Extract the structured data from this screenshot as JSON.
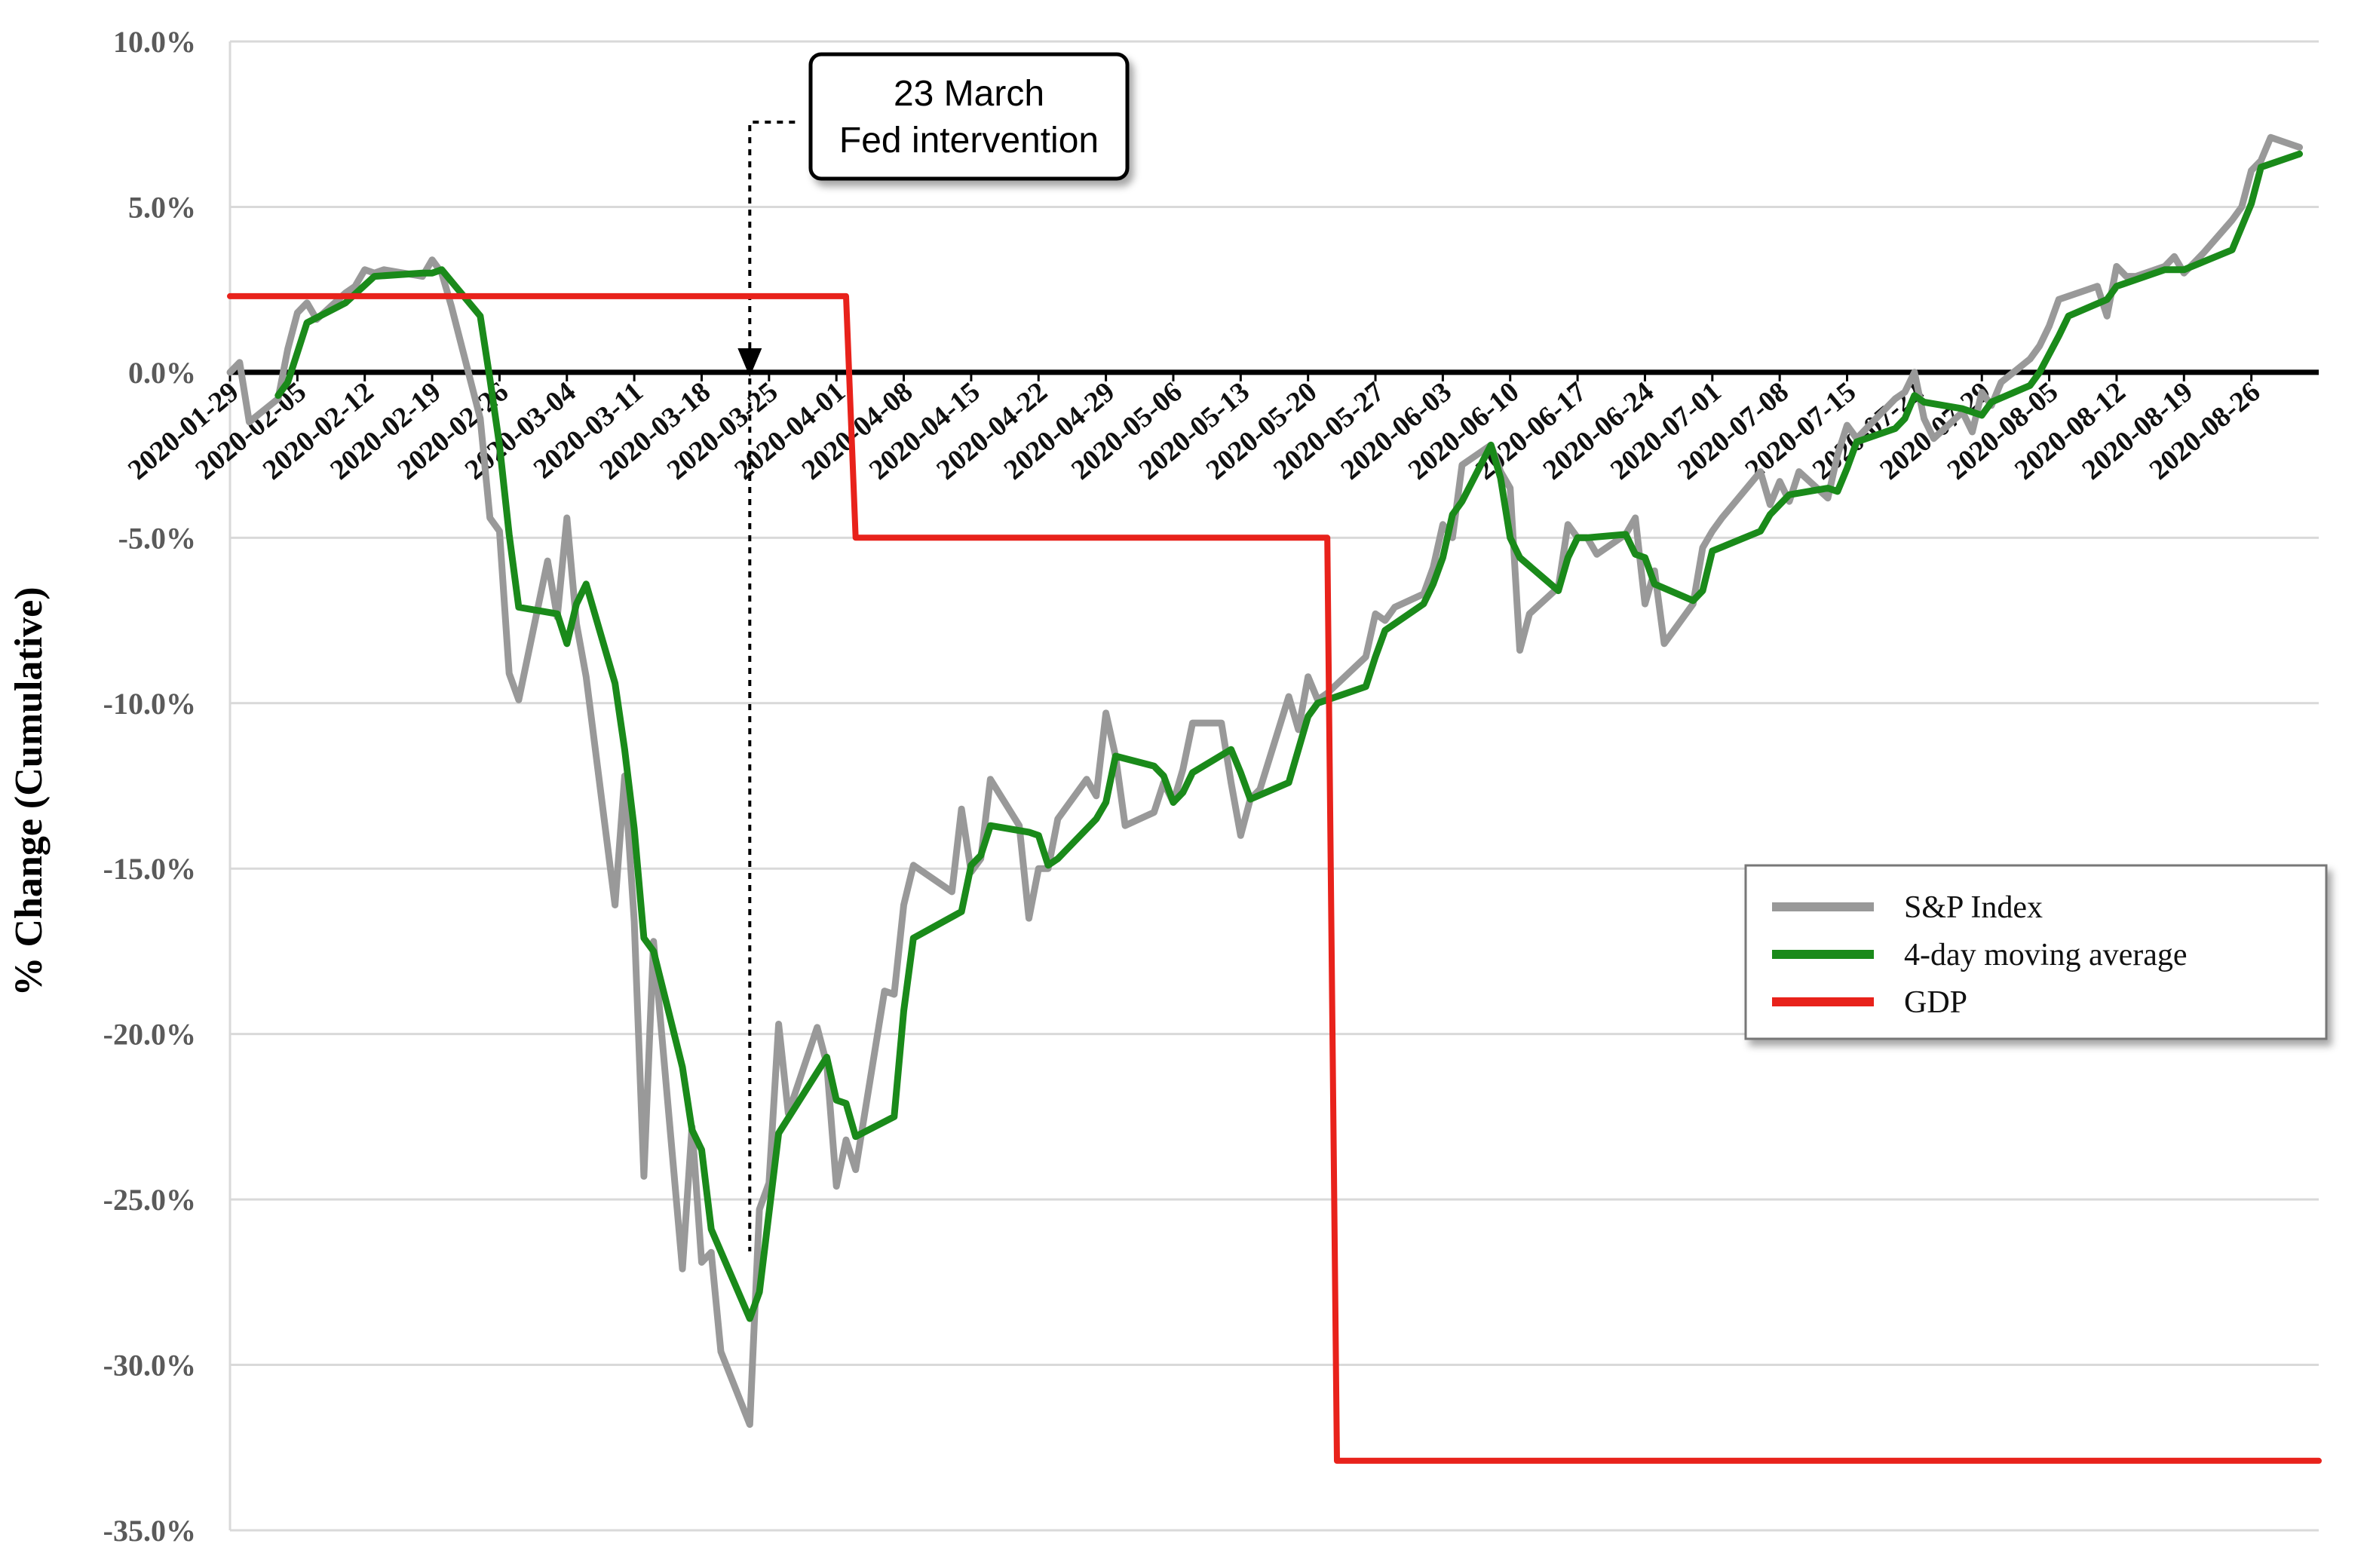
{
  "chart_data": {
    "type": "line",
    "title": "",
    "xlabel": "",
    "ylabel": "% Change (Cumulative)",
    "ylim": [
      -35,
      10
    ],
    "y_ticks": [
      10,
      5,
      0,
      -5,
      -10,
      -15,
      -20,
      -25,
      -30,
      -35
    ],
    "y_tick_labels": [
      "10.0%",
      "5.0%",
      "0.0%",
      "-5.0%",
      "-10.0%",
      "-15.0%",
      "-20.0%",
      "-25.0%",
      "-30.0%",
      "-35.0%"
    ],
    "x_range": [
      "2020-01-29",
      "2020-09-02"
    ],
    "x_tick_labels": [
      "2020-01-29",
      "2020-02-05",
      "2020-02-12",
      "2020-02-19",
      "2020-02-26",
      "2020-03-04",
      "2020-03-11",
      "2020-03-18",
      "2020-03-25",
      "2020-04-01",
      "2020-04-08",
      "2020-04-15",
      "2020-04-22",
      "2020-04-29",
      "2020-05-06",
      "2020-05-13",
      "2020-05-20",
      "2020-05-27",
      "2020-06-03",
      "2020-06-10",
      "2020-06-17",
      "2020-06-24",
      "2020-07-01",
      "2020-07-08",
      "2020-07-15",
      "2020-07-22",
      "2020-07-29",
      "2020-08-05",
      "2020-08-12",
      "2020-08-19",
      "2020-08-26"
    ],
    "grid": true,
    "legend_position": "right",
    "series": [
      {
        "name": "S&P Index",
        "color": "#999999",
        "points": [
          [
            "2020-01-29",
            0.0
          ],
          [
            "2020-01-30",
            0.3
          ],
          [
            "2020-01-31",
            -1.5
          ],
          [
            "2020-02-03",
            -0.8
          ],
          [
            "2020-02-04",
            0.7
          ],
          [
            "2020-02-05",
            1.8
          ],
          [
            "2020-02-06",
            2.1
          ],
          [
            "2020-02-07",
            1.6
          ],
          [
            "2020-02-10",
            2.4
          ],
          [
            "2020-02-11",
            2.6
          ],
          [
            "2020-02-12",
            3.1
          ],
          [
            "2020-02-13",
            3.0
          ],
          [
            "2020-02-14",
            3.1
          ],
          [
            "2020-02-18",
            2.9
          ],
          [
            "2020-02-19",
            3.4
          ],
          [
            "2020-02-20",
            3.0
          ],
          [
            "2020-02-21",
            2.0
          ],
          [
            "2020-02-24",
            -1.4
          ],
          [
            "2020-02-25",
            -4.4
          ],
          [
            "2020-02-26",
            -4.8
          ],
          [
            "2020-02-27",
            -9.1
          ],
          [
            "2020-02-28",
            -9.9
          ],
          [
            "2020-03-02",
            -5.7
          ],
          [
            "2020-03-03",
            -7.4
          ],
          [
            "2020-03-04",
            -4.4
          ],
          [
            "2020-03-05",
            -7.6
          ],
          [
            "2020-03-06",
            -9.2
          ],
          [
            "2020-03-09",
            -16.1
          ],
          [
            "2020-03-10",
            -12.2
          ],
          [
            "2020-03-11",
            -16.6
          ],
          [
            "2020-03-12",
            -24.3
          ],
          [
            "2020-03-13",
            -17.2
          ],
          [
            "2020-03-16",
            -27.1
          ],
          [
            "2020-03-17",
            -22.8
          ],
          [
            "2020-03-18",
            -26.9
          ],
          [
            "2020-03-19",
            -26.6
          ],
          [
            "2020-03-20",
            -29.6
          ],
          [
            "2020-03-23",
            -31.8
          ],
          [
            "2020-03-24",
            -25.3
          ],
          [
            "2020-03-25",
            -24.5
          ],
          [
            "2020-03-26",
            -19.7
          ],
          [
            "2020-03-27",
            -22.4
          ],
          [
            "2020-03-30",
            -19.8
          ],
          [
            "2020-03-31",
            -20.9
          ],
          [
            "2020-04-01",
            -24.6
          ],
          [
            "2020-04-02",
            -23.2
          ],
          [
            "2020-04-03",
            -24.1
          ],
          [
            "2020-04-06",
            -18.7
          ],
          [
            "2020-04-07",
            -18.8
          ],
          [
            "2020-04-08",
            -16.1
          ],
          [
            "2020-04-09",
            -14.9
          ],
          [
            "2020-04-13",
            -15.7
          ],
          [
            "2020-04-14",
            -13.2
          ],
          [
            "2020-04-15",
            -15.1
          ],
          [
            "2020-04-16",
            -14.7
          ],
          [
            "2020-04-17",
            -12.3
          ],
          [
            "2020-04-20",
            -13.7
          ],
          [
            "2020-04-21",
            -16.5
          ],
          [
            "2020-04-22",
            -15.0
          ],
          [
            "2020-04-23",
            -15.0
          ],
          [
            "2020-04-24",
            -13.5
          ],
          [
            "2020-04-27",
            -12.3
          ],
          [
            "2020-04-28",
            -12.8
          ],
          [
            "2020-04-29",
            -10.3
          ],
          [
            "2020-04-30",
            -11.6
          ],
          [
            "2020-05-01",
            -13.7
          ],
          [
            "2020-05-04",
            -13.3
          ],
          [
            "2020-05-05",
            -12.4
          ],
          [
            "2020-05-06",
            -13.0
          ],
          [
            "2020-05-07",
            -12.0
          ],
          [
            "2020-05-08",
            -10.6
          ],
          [
            "2020-05-11",
            -10.6
          ],
          [
            "2020-05-12",
            -12.4
          ],
          [
            "2020-05-13",
            -14.0
          ],
          [
            "2020-05-14",
            -12.9
          ],
          [
            "2020-05-15",
            -12.6
          ],
          [
            "2020-05-18",
            -9.8
          ],
          [
            "2020-05-19",
            -10.8
          ],
          [
            "2020-05-20",
            -9.2
          ],
          [
            "2020-05-21",
            -9.9
          ],
          [
            "2020-05-22",
            -9.7
          ],
          [
            "2020-05-26",
            -8.6
          ],
          [
            "2020-05-27",
            -7.3
          ],
          [
            "2020-05-28",
            -7.5
          ],
          [
            "2020-05-29",
            -7.1
          ],
          [
            "2020-06-01",
            -6.7
          ],
          [
            "2020-06-02",
            -5.9
          ],
          [
            "2020-06-03",
            -4.6
          ],
          [
            "2020-06-04",
            -5.0
          ],
          [
            "2020-06-05",
            -2.8
          ],
          [
            "2020-06-08",
            -2.2
          ],
          [
            "2020-06-09",
            -3.0
          ],
          [
            "2020-06-10",
            -3.5
          ],
          [
            "2020-06-11",
            -8.4
          ],
          [
            "2020-06-12",
            -7.3
          ],
          [
            "2020-06-15",
            -6.5
          ],
          [
            "2020-06-16",
            -4.6
          ],
          [
            "2020-06-17",
            -5.0
          ],
          [
            "2020-06-18",
            -5.0
          ],
          [
            "2020-06-19",
            -5.5
          ],
          [
            "2020-06-22",
            -4.9
          ],
          [
            "2020-06-23",
            -4.4
          ],
          [
            "2020-06-24",
            -7.0
          ],
          [
            "2020-06-25",
            -6.0
          ],
          [
            "2020-06-26",
            -8.2
          ],
          [
            "2020-06-29",
            -7.0
          ],
          [
            "2020-06-30",
            -5.3
          ],
          [
            "2020-07-01",
            -4.8
          ],
          [
            "2020-07-02",
            -4.4
          ],
          [
            "2020-07-06",
            -3.0
          ],
          [
            "2020-07-07",
            -4.0
          ],
          [
            "2020-07-08",
            -3.3
          ],
          [
            "2020-07-09",
            -3.9
          ],
          [
            "2020-07-10",
            -3.0
          ],
          [
            "2020-07-13",
            -3.8
          ],
          [
            "2020-07-14",
            -2.5
          ],
          [
            "2020-07-15",
            -1.6
          ],
          [
            "2020-07-16",
            -2.0
          ],
          [
            "2020-07-17",
            -1.7
          ],
          [
            "2020-07-20",
            -0.8
          ],
          [
            "2020-07-21",
            -0.6
          ],
          [
            "2020-07-22",
            0.0
          ],
          [
            "2020-07-23",
            -1.4
          ],
          [
            "2020-07-24",
            -2.0
          ],
          [
            "2020-07-27",
            -1.2
          ],
          [
            "2020-07-28",
            -1.8
          ],
          [
            "2020-07-29",
            -0.6
          ],
          [
            "2020-07-30",
            -1.0
          ],
          [
            "2020-07-31",
            -0.3
          ],
          [
            "2020-08-03",
            0.4
          ],
          [
            "2020-08-04",
            0.8
          ],
          [
            "2020-08-05",
            1.4
          ],
          [
            "2020-08-06",
            2.2
          ],
          [
            "2020-08-07",
            2.3
          ],
          [
            "2020-08-10",
            2.6
          ],
          [
            "2020-08-11",
            1.7
          ],
          [
            "2020-08-12",
            3.2
          ],
          [
            "2020-08-13",
            2.9
          ],
          [
            "2020-08-14",
            2.9
          ],
          [
            "2020-08-17",
            3.2
          ],
          [
            "2020-08-18",
            3.5
          ],
          [
            "2020-08-19",
            3.0
          ],
          [
            "2020-08-20",
            3.3
          ],
          [
            "2020-08-21",
            3.6
          ],
          [
            "2020-08-24",
            4.6
          ],
          [
            "2020-08-25",
            5.0
          ],
          [
            "2020-08-26",
            6.1
          ],
          [
            "2020-08-27",
            6.4
          ],
          [
            "2020-08-28",
            7.1
          ],
          [
            "2020-08-31",
            6.8
          ]
        ]
      },
      {
        "name": "4-day moving average",
        "color": "#1a8a1a",
        "points": [
          [
            "2020-02-03",
            -0.7
          ],
          [
            "2020-02-04",
            -0.3
          ],
          [
            "2020-02-05",
            0.6
          ],
          [
            "2020-02-06",
            1.5
          ],
          [
            "2020-02-10",
            2.1
          ],
          [
            "2020-02-13",
            2.9
          ],
          [
            "2020-02-18",
            3.0
          ],
          [
            "2020-02-19",
            3.0
          ],
          [
            "2020-02-20",
            3.1
          ],
          [
            "2020-02-24",
            1.7
          ],
          [
            "2020-02-25",
            -0.2
          ],
          [
            "2020-02-26",
            -2.2
          ],
          [
            "2020-02-27",
            -4.9
          ],
          [
            "2020-02-28",
            -7.1
          ],
          [
            "2020-03-03",
            -7.3
          ],
          [
            "2020-03-04",
            -8.2
          ],
          [
            "2020-03-05",
            -7.0
          ],
          [
            "2020-03-06",
            -6.4
          ],
          [
            "2020-03-09",
            -9.4
          ],
          [
            "2020-03-10",
            -11.4
          ],
          [
            "2020-03-11",
            -13.8
          ],
          [
            "2020-03-12",
            -17.1
          ],
          [
            "2020-03-13",
            -17.5
          ],
          [
            "2020-03-16",
            -21.0
          ],
          [
            "2020-03-17",
            -22.9
          ],
          [
            "2020-03-18",
            -23.5
          ],
          [
            "2020-03-19",
            -25.9
          ],
          [
            "2020-03-23",
            -28.6
          ],
          [
            "2020-03-24",
            -27.8
          ],
          [
            "2020-03-26",
            -23.0
          ],
          [
            "2020-03-31",
            -20.7
          ],
          [
            "2020-04-01",
            -22.0
          ],
          [
            "2020-04-02",
            -22.1
          ],
          [
            "2020-04-03",
            -23.1
          ],
          [
            "2020-04-07",
            -22.5
          ],
          [
            "2020-04-08",
            -19.3
          ],
          [
            "2020-04-09",
            -17.1
          ],
          [
            "2020-04-14",
            -16.3
          ],
          [
            "2020-04-15",
            -14.9
          ],
          [
            "2020-04-16",
            -14.6
          ],
          [
            "2020-04-17",
            -13.7
          ],
          [
            "2020-04-21",
            -13.9
          ],
          [
            "2020-04-22",
            -14.0
          ],
          [
            "2020-04-23",
            -14.9
          ],
          [
            "2020-04-24",
            -14.7
          ],
          [
            "2020-04-28",
            -13.5
          ],
          [
            "2020-04-29",
            -13.0
          ],
          [
            "2020-04-30",
            -11.6
          ],
          [
            "2020-05-04",
            -11.9
          ],
          [
            "2020-05-05",
            -12.2
          ],
          [
            "2020-05-06",
            -13.0
          ],
          [
            "2020-05-07",
            -12.7
          ],
          [
            "2020-05-08",
            -12.1
          ],
          [
            "2020-05-12",
            -11.4
          ],
          [
            "2020-05-13",
            -12.1
          ],
          [
            "2020-05-14",
            -12.9
          ],
          [
            "2020-05-18",
            -12.4
          ],
          [
            "2020-05-20",
            -10.4
          ],
          [
            "2020-05-21",
            -10.0
          ],
          [
            "2020-05-26",
            -9.5
          ],
          [
            "2020-05-27",
            -8.6
          ],
          [
            "2020-05-28",
            -7.8
          ],
          [
            "2020-06-01",
            -7.0
          ],
          [
            "2020-06-02",
            -6.4
          ],
          [
            "2020-06-03",
            -5.6
          ],
          [
            "2020-06-04",
            -4.3
          ],
          [
            "2020-06-05",
            -3.9
          ],
          [
            "2020-06-08",
            -2.2
          ],
          [
            "2020-06-09",
            -3.2
          ],
          [
            "2020-06-10",
            -5.0
          ],
          [
            "2020-06-11",
            -5.6
          ],
          [
            "2020-06-15",
            -6.6
          ],
          [
            "2020-06-16",
            -5.6
          ],
          [
            "2020-06-17",
            -5.0
          ],
          [
            "2020-06-18",
            -5.0
          ],
          [
            "2020-06-22",
            -4.9
          ],
          [
            "2020-06-23",
            -5.5
          ],
          [
            "2020-06-24",
            -5.6
          ],
          [
            "2020-06-25",
            -6.4
          ],
          [
            "2020-06-29",
            -6.9
          ],
          [
            "2020-06-30",
            -6.6
          ],
          [
            "2020-07-01",
            -5.4
          ],
          [
            "2020-07-06",
            -4.8
          ],
          [
            "2020-07-07",
            -4.3
          ],
          [
            "2020-07-09",
            -3.7
          ],
          [
            "2020-07-13",
            -3.5
          ],
          [
            "2020-07-14",
            -3.6
          ],
          [
            "2020-07-15",
            -2.9
          ],
          [
            "2020-07-16",
            -2.1
          ],
          [
            "2020-07-20",
            -1.7
          ],
          [
            "2020-07-21",
            -1.4
          ],
          [
            "2020-07-22",
            -0.7
          ],
          [
            "2020-07-23",
            -0.9
          ],
          [
            "2020-07-27",
            -1.1
          ],
          [
            "2020-07-29",
            -1.3
          ],
          [
            "2020-07-30",
            -0.9
          ],
          [
            "2020-08-03",
            -0.4
          ],
          [
            "2020-08-04",
            0.0
          ],
          [
            "2020-08-06",
            1.1
          ],
          [
            "2020-08-07",
            1.7
          ],
          [
            "2020-08-11",
            2.2
          ],
          [
            "2020-08-12",
            2.6
          ],
          [
            "2020-08-13",
            2.7
          ],
          [
            "2020-08-17",
            3.1
          ],
          [
            "2020-08-19",
            3.1
          ],
          [
            "2020-08-24",
            3.7
          ],
          [
            "2020-08-25",
            4.4
          ],
          [
            "2020-08-26",
            5.1
          ],
          [
            "2020-08-27",
            6.2
          ],
          [
            "2020-08-31",
            6.6
          ]
        ]
      },
      {
        "name": "GDP",
        "color": "#e8221b",
        "points": [
          [
            "2020-01-29",
            2.3
          ],
          [
            "2020-04-02",
            2.3
          ],
          [
            "2020-04-03",
            -5.0
          ],
          [
            "2020-05-22",
            -5.0
          ],
          [
            "2020-05-23",
            -32.9
          ],
          [
            "2020-09-02",
            -32.9
          ]
        ]
      }
    ],
    "annotations": [
      {
        "text_lines": [
          "23 March",
          "Fed intervention"
        ],
        "x": "2020-03-23"
      }
    ]
  }
}
